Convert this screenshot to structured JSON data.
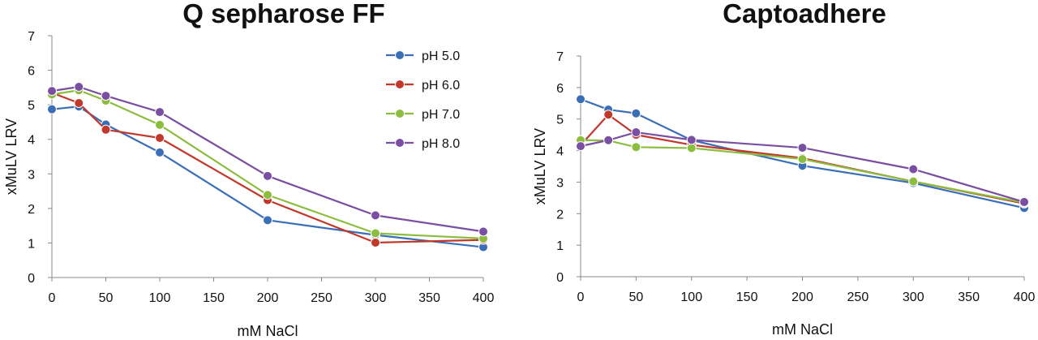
{
  "chart_data": [
    {
      "type": "line",
      "title": "Q sepharose FF",
      "xlabel": "mM NaCl",
      "ylabel": "xMuLV LRV",
      "xlim": [
        0,
        400
      ],
      "ylim": [
        0,
        7
      ],
      "xticks": [
        0,
        50,
        100,
        150,
        200,
        250,
        300,
        350,
        400
      ],
      "yticks": [
        0,
        1,
        2,
        3,
        4,
        5,
        6,
        7
      ],
      "grid": false,
      "legend": "top-right",
      "x": [
        0,
        25,
        50,
        100,
        200,
        300,
        400
      ],
      "series": [
        {
          "name": "pH 5.0",
          "color": "#3a6fb8",
          "values": [
            4.87,
            4.95,
            4.43,
            3.62,
            1.66,
            1.23,
            0.88
          ]
        },
        {
          "name": "pH 6.0",
          "color": "#c0392b",
          "values": [
            5.35,
            5.05,
            4.28,
            4.04,
            2.24,
            1.01,
            1.09
          ]
        },
        {
          "name": "pH 7.0",
          "color": "#8cbd3f",
          "values": [
            5.3,
            5.42,
            5.12,
            4.42,
            2.39,
            1.28,
            1.13
          ]
        },
        {
          "name": "pH 8.0",
          "color": "#7a4ea0",
          "values": [
            5.4,
            5.52,
            5.26,
            4.79,
            2.94,
            1.8,
            1.33
          ]
        }
      ]
    },
    {
      "type": "line",
      "title": "Captoadhere",
      "xlabel": "mM NaCl",
      "ylabel": "xMuLV LRV",
      "xlim": [
        0,
        400
      ],
      "ylim": [
        0,
        7
      ],
      "xticks": [
        0,
        50,
        100,
        150,
        200,
        250,
        300,
        350,
        400
      ],
      "yticks": [
        0,
        1,
        2,
        3,
        4,
        5,
        6,
        7
      ],
      "grid": false,
      "legend": "none",
      "x": [
        0,
        25,
        50,
        100,
        200,
        300,
        400
      ],
      "series": [
        {
          "name": "pH 5.0",
          "color": "#3a6fb8",
          "values": [
            5.63,
            5.3,
            5.18,
            4.33,
            3.52,
            2.97,
            2.18
          ]
        },
        {
          "name": "pH 6.0",
          "color": "#c0392b",
          "values": [
            4.17,
            5.14,
            4.5,
            4.18,
            3.76,
            3.02,
            2.32
          ]
        },
        {
          "name": "pH 7.0",
          "color": "#8cbd3f",
          "values": [
            4.33,
            4.32,
            4.11,
            4.08,
            3.73,
            3.02,
            2.35
          ]
        },
        {
          "name": "pH 8.0",
          "color": "#7a4ea0",
          "values": [
            4.14,
            4.33,
            4.58,
            4.34,
            4.09,
            3.41,
            2.37
          ]
        }
      ]
    }
  ]
}
